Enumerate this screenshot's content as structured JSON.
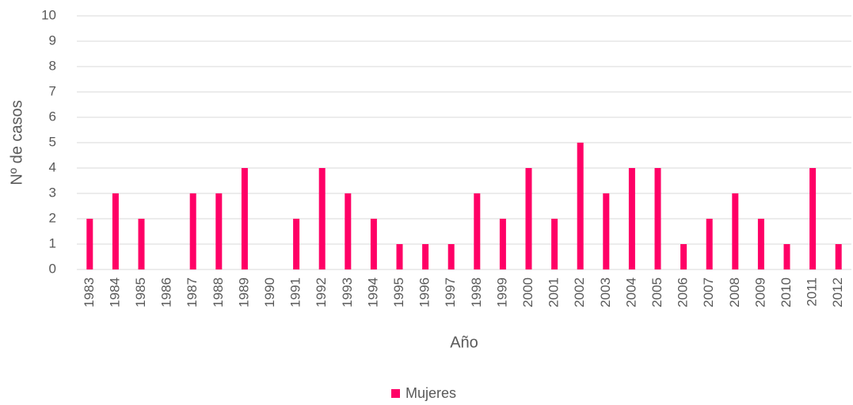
{
  "chart_data": {
    "type": "bar",
    "x_label": "Año",
    "y_label": "Nº de casos",
    "categories": [
      "1983",
      "1984",
      "1985",
      "1986",
      "1987",
      "1988",
      "1989",
      "1990",
      "1991",
      "1992",
      "1993",
      "1994",
      "1995",
      "1996",
      "1997",
      "1998",
      "1999",
      "2000",
      "2001",
      "2002",
      "2003",
      "2004",
      "2005",
      "2006",
      "2007",
      "2008",
      "2009",
      "2010",
      "2011",
      "2012"
    ],
    "series": [
      {
        "name": "Mujeres",
        "color": "#ff0066",
        "values": [
          2,
          3,
          2,
          0,
          3,
          3,
          4,
          0,
          2,
          4,
          3,
          2,
          1,
          1,
          1,
          3,
          2,
          4,
          2,
          5,
          3,
          4,
          4,
          1,
          2,
          3,
          2,
          1,
          4,
          1
        ]
      }
    ],
    "ylim": [
      0,
      10
    ],
    "yticks": [
      0,
      1,
      2,
      3,
      4,
      5,
      6,
      7,
      8,
      9,
      10
    ],
    "grid": true,
    "legend": "bottom"
  }
}
